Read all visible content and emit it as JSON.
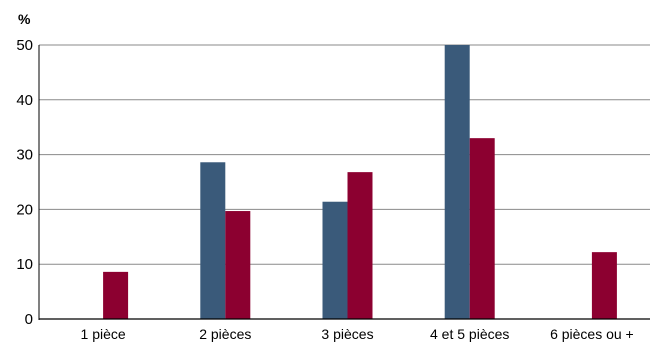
{
  "chart_data": {
    "type": "bar",
    "ylabel": "%",
    "categories": [
      "1 pièce",
      "2 pièces",
      "3 pièces",
      "4 et 5 pièces",
      "6 pièces ou +"
    ],
    "series": [
      {
        "values": [
          0,
          28.6,
          21.4,
          50,
          0
        ],
        "color": "#3a5a7a"
      },
      {
        "values": [
          8.6,
          19.7,
          26.8,
          33,
          12.2
        ],
        "color": "#8c0030"
      }
    ],
    "ylim": [
      0,
      50
    ],
    "yticks": [
      0,
      10,
      20,
      30,
      40,
      50
    ],
    "grid": true,
    "legend": "none"
  }
}
